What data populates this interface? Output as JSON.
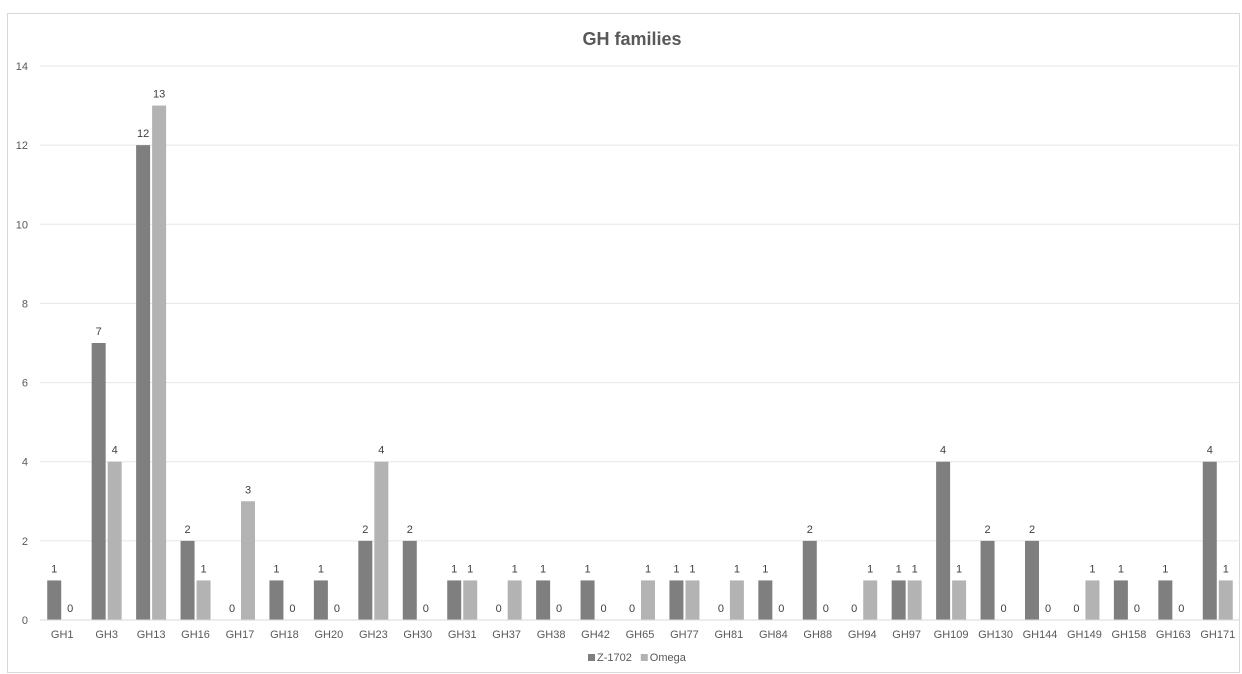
{
  "chart_data": {
    "type": "bar",
    "title": "GH families",
    "xlabel": "",
    "ylabel": "",
    "ylim": [
      0,
      14
    ],
    "yticks": [
      0,
      2,
      4,
      6,
      8,
      10,
      12,
      14
    ],
    "grid": true,
    "legend_position": "bottom",
    "categories": [
      "GH1",
      "GH3",
      "GH13",
      "GH16",
      "GH17",
      "GH18",
      "GH20",
      "GH23",
      "GH30",
      "GH31",
      "GH37",
      "GH38",
      "GH42",
      "GH65",
      "GH77",
      "GH81",
      "GH84",
      "GH88",
      "GH94",
      "GH97",
      "GH109",
      "GH130",
      "GH144",
      "GH149",
      "GH158",
      "GH163",
      "GH171"
    ],
    "series": [
      {
        "name": "Z-1702",
        "color": "#7f7f7f",
        "values": [
          1,
          7,
          12,
          2,
          0,
          1,
          1,
          2,
          2,
          1,
          0,
          1,
          1,
          0,
          1,
          0,
          1,
          2,
          0,
          1,
          4,
          2,
          2,
          0,
          1,
          1,
          4
        ]
      },
      {
        "name": "Omega",
        "color": "#b3b3b3",
        "values": [
          0,
          4,
          13,
          1,
          3,
          0,
          0,
          4,
          0,
          1,
          1,
          0,
          0,
          1,
          1,
          1,
          0,
          0,
          1,
          1,
          1,
          0,
          0,
          1,
          0,
          0,
          1
        ]
      }
    ],
    "data_labels": true
  }
}
